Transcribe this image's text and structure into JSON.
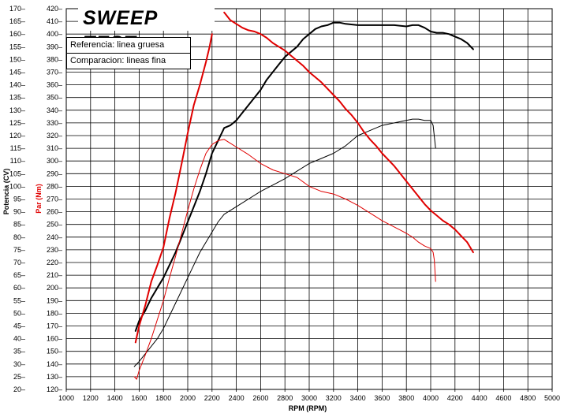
{
  "chart_data": {
    "type": "line",
    "title": "SWEEP TEST",
    "legend": [
      "Referencia: linea gruesa",
      "Comparacion: lineas fina"
    ],
    "legend_placement": "top-left",
    "grid": true,
    "xlabel": "RPM (RPM)",
    "ylabel_left": "Potencia (CV)",
    "ylabel_right": "Par (Nm)",
    "xlim": [
      1000,
      5000
    ],
    "ylim_left": [
      20,
      170
    ],
    "ylim_right": [
      120,
      420
    ],
    "x_ticks": [
      1000,
      1200,
      1400,
      1600,
      1800,
      2000,
      2200,
      2400,
      2600,
      2800,
      3000,
      3200,
      3400,
      3600,
      3800,
      4000,
      4200,
      4400,
      4600,
      4800,
      5000
    ],
    "y_ticks_left": [
      20,
      25,
      30,
      35,
      40,
      45,
      50,
      55,
      60,
      65,
      70,
      75,
      80,
      85,
      90,
      95,
      100,
      105,
      110,
      115,
      120,
      125,
      130,
      135,
      140,
      145,
      150,
      155,
      160,
      165,
      170
    ],
    "y_ticks_right": [
      120,
      130,
      140,
      150,
      160,
      170,
      180,
      190,
      200,
      210,
      220,
      230,
      240,
      250,
      260,
      270,
      280,
      290,
      300,
      310,
      320,
      330,
      340,
      350,
      360,
      370,
      380,
      390,
      400,
      410,
      420
    ],
    "series": [
      {
        "color": "#000000",
        "axis": "left",
        "line": "thick",
        "x": [
          1570,
          1600,
          1650,
          1700,
          1750,
          1800,
          1850,
          1900,
          1950,
          2000,
          2050,
          2100,
          2150,
          2200,
          2250,
          2300,
          2350,
          2400,
          2450,
          2500,
          2550,
          2600,
          2650,
          2700,
          2750,
          2800,
          2850,
          2900,
          2950,
          3000,
          3050,
          3100,
          3150,
          3200,
          3250,
          3300,
          3400,
          3500,
          3600,
          3700,
          3800,
          3850,
          3900,
          3950,
          4000,
          4050,
          4100,
          4150,
          4200,
          4250,
          4300,
          4350
        ],
        "y": [
          43,
          47,
          51,
          56,
          60,
          64,
          69,
          74,
          80,
          86,
          92,
          98,
          105,
          113,
          118,
          123,
          124,
          126,
          129,
          132,
          135,
          138,
          142,
          145,
          148,
          151,
          153,
          155,
          158,
          160,
          162,
          163,
          163.5,
          164.5,
          164.5,
          164,
          163.5,
          163.5,
          163.5,
          163.5,
          163,
          163.5,
          163.5,
          162.5,
          161,
          160.5,
          160.5,
          160,
          159,
          158,
          156.5,
          154
        ]
      },
      {
        "color": "#000000",
        "axis": "left",
        "line": "thin",
        "x": [
          1560,
          1600,
          1650,
          1700,
          1750,
          1800,
          1850,
          1900,
          1950,
          2000,
          2050,
          2100,
          2150,
          2200,
          2250,
          2300,
          2400,
          2500,
          2600,
          2700,
          2800,
          2900,
          3000,
          3100,
          3200,
          3300,
          3400,
          3500,
          3600,
          3700,
          3800,
          3850,
          3900,
          3950,
          4000,
          4020,
          4040
        ],
        "y": [
          29,
          31,
          34,
          37,
          40,
          44,
          49,
          54,
          59,
          64,
          69,
          74,
          78,
          82,
          86,
          89,
          92,
          95,
          98,
          100.5,
          103,
          106,
          109,
          111,
          113,
          116,
          120,
          122,
          124,
          125,
          126,
          126.5,
          126.5,
          126,
          126,
          124,
          115
        ]
      },
      {
        "color": "#e00000",
        "axis": "right",
        "line": "thick",
        "x": [
          1570,
          1600,
          1650,
          1700,
          1750,
          1800,
          1850,
          1900,
          1950,
          2000,
          2050,
          2100,
          2150,
          2180,
          2200
        ],
        "y": [
          157,
          170,
          186,
          205,
          218,
          232,
          255,
          275,
          298,
          322,
          344,
          360,
          378,
          390,
          400
        ]
      },
      {
        "color": "#e00000",
        "axis": "right",
        "line": "thick",
        "x": [
          2300,
          2350,
          2400,
          2450,
          2500,
          2550,
          2600,
          2650,
          2700,
          2750,
          2800,
          2850,
          2900,
          2950,
          3000,
          3050,
          3100,
          3150,
          3200,
          3250,
          3300,
          3350,
          3400,
          3450,
          3500,
          3550,
          3600,
          3650,
          3700,
          3750,
          3800,
          3850,
          3900,
          3950,
          4000,
          4050,
          4100,
          4150,
          4200,
          4250,
          4300,
          4350
        ],
        "y": [
          417,
          411,
          408,
          405,
          403,
          402,
          400,
          397,
          393,
          390,
          387,
          383,
          379,
          375,
          370,
          366,
          362,
          357,
          352,
          347,
          341,
          336,
          330,
          323,
          317,
          312,
          306,
          301,
          296,
          290,
          284,
          278,
          272,
          266,
          261,
          257,
          253,
          250,
          246,
          241,
          236,
          228
        ]
      },
      {
        "color": "#e00000",
        "axis": "right",
        "line": "thin",
        "x": [
          1560,
          1580,
          1600,
          1650,
          1700,
          1750,
          1800,
          1850,
          1900,
          1950,
          2000,
          2050,
          2100,
          2150,
          2200,
          2250,
          2300,
          2350,
          2400,
          2500,
          2600,
          2700,
          2800,
          2900,
          3000,
          3100,
          3200,
          3300,
          3400,
          3500,
          3600,
          3700,
          3800,
          3850,
          3900,
          3950,
          4000,
          4020,
          4030,
          4040
        ],
        "y": [
          130,
          128,
          135,
          147,
          160,
          175,
          190,
          208,
          225,
          243,
          261,
          278,
          293,
          306,
          313,
          316,
          317,
          314,
          311,
          305,
          298,
          293,
          290,
          287,
          280,
          276,
          274,
          270,
          265,
          259,
          253,
          248,
          243,
          240,
          236,
          233,
          231,
          228,
          222,
          205
        ]
      }
    ]
  }
}
